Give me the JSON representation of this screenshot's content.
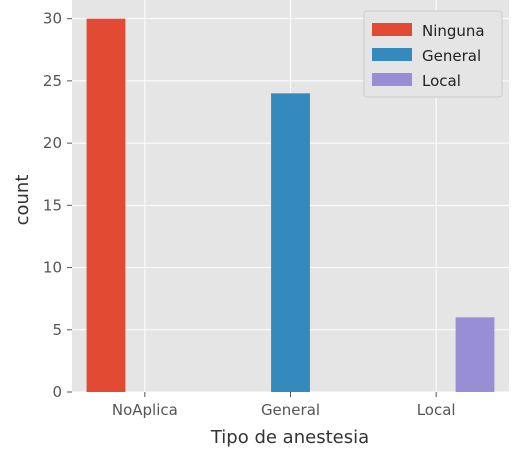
{
  "chart_data": {
    "type": "bar",
    "title": "",
    "xlabel": "Tipo de anestesia",
    "ylabel": "count",
    "categories": [
      "NoAplica",
      "General",
      "Local"
    ],
    "hue_levels": [
      "Ninguna",
      "General",
      "Local"
    ],
    "series": [
      {
        "name": "Ninguna",
        "values": [
          30,
          0,
          0
        ],
        "color": "#E24A33"
      },
      {
        "name": "General",
        "values": [
          0,
          24,
          0
        ],
        "color": "#348ABD"
      },
      {
        "name": "Local",
        "values": [
          0,
          0,
          6
        ],
        "color": "#988ED5"
      }
    ],
    "ylim": [
      0,
      31.5
    ],
    "yticks": [
      0,
      5,
      10,
      15,
      20,
      25,
      30
    ],
    "grid": true,
    "legend_position": "top-right",
    "style": "ggplot",
    "colors": {
      "plot_background": "#E5E5E5",
      "grid": "#FFFFFF",
      "figure_background": "#FFFFFF"
    }
  }
}
